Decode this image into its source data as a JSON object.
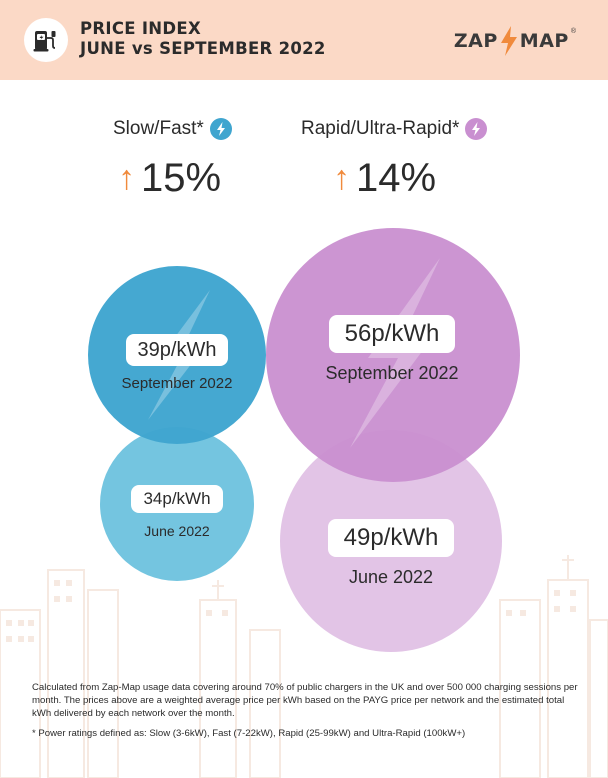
{
  "header": {
    "title_line1": "PRICE INDEX",
    "title_line2": "JUNE vs SEPTEMBER 2022",
    "brand_left": "ZAP",
    "brand_right": "MAP",
    "brand_reg": "®",
    "icon": "ev-charger-icon"
  },
  "colors": {
    "header_bg": "#fbd9c6",
    "slow_fast_sept": "#3fa5cf",
    "slow_fast_june": "#74c5e0",
    "rapid_sept": "#c98fd0",
    "rapid_june": "#e2c4e6",
    "arrow": "#f08a3c",
    "brand_bolt": "#f08a3c"
  },
  "categories": [
    {
      "label": "Slow/Fast*",
      "icon": "lightning-icon",
      "change": "15%",
      "change_direction": "up",
      "september": {
        "price": "39p/kWh",
        "period": "September 2022"
      },
      "june": {
        "price": "34p/kWh",
        "period": "June 2022"
      }
    },
    {
      "label": "Rapid/Ultra-Rapid*",
      "icon": "lightning-icon",
      "change": "14%",
      "change_direction": "up",
      "september": {
        "price": "56p/kWh",
        "period": "September 2022"
      },
      "june": {
        "price": "49p/kWh",
        "period": "June 2022"
      }
    }
  ],
  "footnote": {
    "methodology": "Calculated from Zap-Map usage data covering around 70% of public chargers in the UK and over 500 000 charging sessions per month. The prices above are a weighted average price per kWh based on the PAYG price per network and the estimated total kWh delivered by each network over the month.",
    "power_ratings": "* Power ratings defined as: Slow (3-6kW), Fast (7-22kW), Rapid (25-99kW) and Ultra-Rapid (100kW+)"
  }
}
